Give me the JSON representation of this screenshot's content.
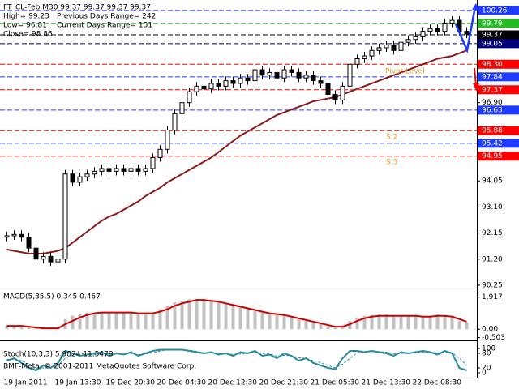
{
  "chart_data": [
    {
      "type": "candlestick",
      "title": "FT_CL-Feb,M30  99.37 99.37 99.37 99.37",
      "info": [
        "High= 99.23",
        "Previous Days Range= 242",
        "Low= 96.81",
        "Current Days Range= 151",
        "Close= 98.86"
      ],
      "annotations": [
        "Pivot Level",
        "S:2",
        "S:3"
      ],
      "footer": "BMF-Meta, © 2001-2011 MetaQuotes Software Corp.",
      "categories": [
        "19 Jan 2011",
        null,
        null,
        null,
        null,
        null,
        null,
        "19 Jan 13:30",
        null,
        null,
        null,
        null,
        null,
        null,
        "19 Dec 20:30",
        null,
        null,
        null,
        null,
        null,
        null,
        "20 Dec 04:30",
        null,
        null,
        null,
        null,
        null,
        null,
        "20 Dec 12:30",
        null,
        null,
        null,
        null,
        null,
        null,
        "20 Dec 21:30",
        null,
        null,
        null,
        null,
        null,
        null,
        "21 Dec 05:30",
        null,
        null,
        null,
        null,
        null,
        null,
        "21 Dec 13:30",
        null,
        null,
        null,
        null,
        null,
        null,
        "22 Dec 08:30",
        null,
        null,
        null,
        null,
        null,
        null,
        null
      ],
      "open": [
        92.0,
        92.05,
        92.1,
        92.0,
        91.6,
        91.2,
        91.3,
        91.1,
        91.2,
        94.3,
        94.0,
        94.2,
        94.3,
        94.4,
        94.5,
        94.4,
        94.5,
        94.4,
        94.5,
        94.4,
        94.5,
        94.9,
        95.2,
        95.9,
        96.5,
        96.9,
        97.3,
        97.5,
        97.4,
        97.6,
        97.5,
        97.7,
        97.6,
        97.8,
        97.7,
        98.1,
        97.9,
        98.0,
        97.8,
        98.1,
        98.0,
        97.8,
        97.9,
        97.7,
        97.6,
        97.2,
        97.0,
        97.5,
        98.3,
        98.5,
        98.6,
        98.8,
        98.9,
        99.0,
        98.8,
        99.1,
        99.2,
        99.3,
        99.5,
        99.6,
        99.5,
        99.8,
        99.9,
        99.5
      ],
      "high": [
        92.2,
        92.25,
        92.25,
        92.15,
        91.75,
        91.45,
        91.45,
        91.35,
        94.45,
        94.45,
        94.35,
        94.45,
        94.55,
        94.65,
        94.65,
        94.65,
        94.65,
        94.65,
        94.65,
        94.65,
        95.05,
        95.35,
        96.05,
        96.65,
        97.05,
        97.45,
        97.65,
        97.65,
        97.75,
        97.75,
        97.85,
        97.85,
        97.95,
        97.95,
        98.25,
        98.25,
        98.15,
        98.15,
        98.25,
        98.25,
        98.15,
        98.05,
        98.05,
        97.85,
        97.75,
        97.35,
        97.65,
        98.45,
        98.65,
        98.75,
        98.95,
        99.05,
        99.15,
        99.15,
        99.25,
        99.35,
        99.45,
        99.65,
        99.75,
        99.75,
        99.95,
        100.05,
        100.05,
        99.65
      ],
      "low": [
        91.85,
        91.9,
        91.85,
        91.45,
        91.05,
        91.05,
        90.95,
        90.95,
        91.05,
        93.85,
        93.85,
        94.05,
        94.15,
        94.25,
        94.25,
        94.25,
        94.25,
        94.25,
        94.25,
        94.25,
        94.35,
        94.75,
        95.05,
        95.75,
        96.35,
        96.75,
        97.15,
        97.25,
        97.25,
        97.35,
        97.35,
        97.45,
        97.45,
        97.55,
        97.55,
        97.75,
        97.75,
        97.65,
        97.65,
        97.85,
        97.65,
        97.65,
        97.55,
        97.45,
        97.05,
        96.85,
        96.85,
        97.35,
        98.15,
        98.35,
        98.45,
        98.65,
        98.75,
        98.65,
        98.65,
        98.95,
        99.05,
        99.15,
        99.35,
        99.35,
        99.35,
        99.65,
        99.35,
        99.25
      ],
      "close": [
        92.05,
        92.1,
        92.0,
        91.6,
        91.2,
        91.3,
        91.1,
        91.2,
        94.3,
        94.0,
        94.2,
        94.3,
        94.4,
        94.5,
        94.4,
        94.5,
        94.4,
        94.5,
        94.4,
        94.5,
        94.9,
        95.2,
        95.9,
        96.5,
        96.9,
        97.3,
        97.5,
        97.4,
        97.6,
        97.5,
        97.7,
        97.6,
        97.8,
        97.7,
        98.1,
        97.9,
        98.0,
        97.8,
        98.1,
        98.0,
        97.8,
        97.9,
        97.7,
        97.6,
        97.2,
        97.0,
        97.5,
        98.3,
        98.5,
        98.6,
        98.8,
        98.9,
        99.0,
        98.8,
        99.1,
        99.2,
        99.3,
        99.5,
        99.6,
        99.5,
        99.8,
        99.9,
        99.5,
        99.4
      ],
      "series": [
        {
          "color": "#8b1a1a",
          "values": [
            91.55,
            91.5,
            91.45,
            91.4,
            91.4,
            91.4,
            91.45,
            91.5,
            91.6,
            91.8,
            92.0,
            92.2,
            92.4,
            92.6,
            92.75,
            92.85,
            93.0,
            93.15,
            93.3,
            93.5,
            93.65,
            93.8,
            94.0,
            94.15,
            94.3,
            94.45,
            94.6,
            94.75,
            94.9,
            95.1,
            95.3,
            95.5,
            95.7,
            95.85,
            96.0,
            96.15,
            96.3,
            96.45,
            96.55,
            96.65,
            96.75,
            96.85,
            96.95,
            97.0,
            97.05,
            97.1,
            97.2,
            97.3,
            97.4,
            97.5,
            97.6,
            97.7,
            97.8,
            97.9,
            98.0,
            98.1,
            98.2,
            98.3,
            98.4,
            98.5,
            98.55,
            98.6,
            98.7,
            98.8
          ]
        }
      ],
      "levels": [
        {
          "value": 100.26,
          "label": "100.26",
          "color": "#1e3cff"
        },
        {
          "value": 99.79,
          "label": "99.79",
          "color": "#22bb22"
        },
        {
          "value": 99.37,
          "label": "99.37",
          "color": "#000000"
        },
        {
          "value": 99.05,
          "label": "99.05",
          "color": "#000080"
        },
        {
          "value": 98.3,
          "label": "98.30",
          "color": "#ff0000"
        },
        {
          "value": 97.84,
          "label": "97.84",
          "color": "#1e3cff"
        },
        {
          "value": 97.37,
          "label": "97.37",
          "color": "#ff0000"
        },
        {
          "value": 96.63,
          "label": "96.63",
          "color": "#1e3cff"
        },
        {
          "value": 95.88,
          "label": "95.88",
          "color": "#ff0000"
        },
        {
          "value": 95.42,
          "label": "95.42",
          "color": "#1e3cff"
        },
        {
          "value": 94.95,
          "label": "94.95",
          "color": "#ff0000"
        }
      ],
      "ylim": [
        90.13,
        100.64
      ],
      "yticks": [
        90.25,
        {
          "value": 91.2,
          "label": "91.20"
        },
        92.15,
        {
          "value": 93.1,
          "label": "93.10"
        },
        94.05,
        {
          "value": 96.9,
          "label": "96.90"
        }
      ]
    },
    {
      "type": "macd",
      "title": "MACD(5,35,5) 0.345 0.467",
      "histogram": {
        "color": "#c0c0c0",
        "values": [
          0.2,
          0.2,
          0.15,
          0.1,
          0.05,
          0.05,
          0.05,
          0.05,
          0.6,
          0.8,
          0.9,
          1.0,
          1.0,
          1.0,
          1.0,
          1.0,
          0.95,
          0.95,
          0.95,
          0.9,
          1.0,
          1.2,
          1.4,
          1.6,
          1.7,
          1.8,
          1.8,
          1.75,
          1.7,
          1.6,
          1.5,
          1.4,
          1.3,
          1.2,
          1.1,
          1.0,
          0.9,
          0.85,
          0.8,
          0.7,
          0.6,
          0.5,
          0.4,
          0.3,
          0.2,
          0.1,
          0.2,
          0.5,
          0.7,
          0.8,
          0.85,
          0.9,
          0.9,
          0.85,
          0.8,
          0.85,
          0.8,
          0.75,
          0.8,
          0.9,
          0.85,
          0.7,
          0.5,
          0.4
        ]
      },
      "series": [
        {
          "color": "#cc0000",
          "values": [
            0.2,
            0.2,
            0.2,
            0.15,
            0.1,
            0.05,
            0.05,
            0.05,
            0.3,
            0.5,
            0.7,
            0.85,
            0.95,
            1.0,
            1.0,
            1.0,
            1.0,
            1.0,
            0.95,
            0.95,
            0.95,
            1.05,
            1.2,
            1.4,
            1.55,
            1.65,
            1.75,
            1.75,
            1.7,
            1.65,
            1.55,
            1.45,
            1.35,
            1.25,
            1.15,
            1.05,
            0.95,
            0.9,
            0.85,
            0.75,
            0.65,
            0.55,
            0.45,
            0.35,
            0.25,
            0.15,
            0.15,
            0.3,
            0.5,
            0.65,
            0.75,
            0.8,
            0.8,
            0.8,
            0.8,
            0.8,
            0.8,
            0.75,
            0.75,
            0.8,
            0.8,
            0.75,
            0.6,
            0.45
          ]
        }
      ],
      "ylim": [
        -0.67,
        2.39
      ],
      "yticks": [
        1.917,
        {
          "value": 0,
          "label": "0.00"
        },
        -0.503
      ]
    },
    {
      "type": "line",
      "title": "Stoch(10,3,3) 5.9824 11.5478",
      "series": [
        {
          "color": "#2a8aa0",
          "values": [
            50,
            60,
            40,
            20,
            10,
            30,
            20,
            40,
            90,
            80,
            70,
            75,
            80,
            85,
            70,
            80,
            75,
            85,
            70,
            80,
            90,
            95,
            95,
            95,
            95,
            90,
            85,
            80,
            85,
            75,
            80,
            70,
            85,
            80,
            90,
            70,
            75,
            60,
            80,
            70,
            50,
            60,
            40,
            30,
            20,
            15,
            60,
            90,
            90,
            85,
            90,
            85,
            80,
            70,
            85,
            80,
            85,
            90,
            85,
            75,
            90,
            80,
            20,
            10
          ]
        },
        {
          "color": "#2a8aa0",
          "dashed": true,
          "values": [
            55,
            55,
            50,
            35,
            20,
            20,
            20,
            30,
            60,
            75,
            80,
            75,
            75,
            80,
            78,
            78,
            75,
            80,
            75,
            78,
            82,
            90,
            95,
            95,
            95,
            93,
            88,
            82,
            82,
            80,
            80,
            75,
            78,
            80,
            85,
            80,
            78,
            68,
            72,
            70,
            62,
            58,
            50,
            42,
            30,
            20,
            35,
            60,
            82,
            88,
            88,
            87,
            85,
            78,
            80,
            80,
            82,
            85,
            85,
            82,
            83,
            82,
            60,
            30
          ]
        }
      ],
      "ylim": [
        -20,
        130
      ],
      "yticks": [
        100,
        80,
        20,
        0
      ]
    }
  ]
}
